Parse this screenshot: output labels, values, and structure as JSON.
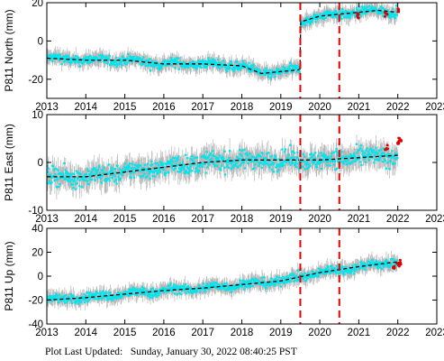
{
  "chart_data": [
    {
      "type": "scatter",
      "ylabel": "P811 North (mm)",
      "xlim": [
        2013,
        2023
      ],
      "ylim": [
        -30,
        20
      ],
      "xticks": [
        2013,
        2014,
        2015,
        2016,
        2017,
        2018,
        2019,
        2020,
        2021,
        2022,
        2023
      ],
      "yticks": [
        -20,
        0,
        20
      ],
      "event_lines": [
        2019.5,
        2020.5
      ],
      "series": [
        {
          "role": "daily",
          "color": "#00e5ee",
          "errorbar_color": "#aaaaaa",
          "x": [
            2013.0,
            2014.0,
            2015.0,
            2016.0,
            2017.0,
            2018.0,
            2018.5,
            2019.49,
            2019.51,
            2020.0,
            2020.5,
            2021.0,
            2021.5,
            2022.0
          ],
          "y": [
            -9,
            -10,
            -10,
            -12,
            -12,
            -13,
            -17,
            -15,
            10,
            13,
            14,
            15,
            16,
            15
          ]
        },
        {
          "role": "model",
          "color": "#000000",
          "style": "dashed",
          "x": [
            2013.0,
            2014.0,
            2015.0,
            2016.0,
            2017.0,
            2018.0,
            2018.5,
            2019.49,
            2019.51,
            2020.0,
            2020.5,
            2021.0,
            2021.5,
            2022.0
          ],
          "y": [
            -9,
            -10,
            -10,
            -12,
            -12,
            -13,
            -17,
            -15,
            10,
            13,
            14,
            15,
            16,
            15
          ]
        },
        {
          "role": "rapid",
          "color": "#dd0000",
          "x": [
            2021.0,
            2021.7,
            2022.0
          ],
          "y": [
            13,
            14,
            16
          ]
        }
      ]
    },
    {
      "type": "scatter",
      "ylabel": "P811 East (mm)",
      "xlim": [
        2013,
        2023
      ],
      "ylim": [
        -10,
        10
      ],
      "xticks": [
        2013,
        2014,
        2015,
        2016,
        2017,
        2018,
        2019,
        2020,
        2021,
        2022,
        2023
      ],
      "yticks": [
        -10,
        0,
        10
      ],
      "event_lines": [
        2019.5,
        2020.5
      ],
      "series": [
        {
          "role": "daily",
          "color": "#00e5ee",
          "errorbar_color": "#aaaaaa",
          "x": [
            2013.0,
            2014.0,
            2015.0,
            2016.0,
            2017.0,
            2018.0,
            2019.0,
            2020.0,
            2021.0,
            2022.0
          ],
          "y": [
            -3,
            -3,
            -2,
            -1,
            0,
            0.5,
            0.5,
            0.5,
            1,
            1.5
          ]
        },
        {
          "role": "model",
          "color": "#000000",
          "style": "dashed",
          "x": [
            2013.0,
            2014.0,
            2015.0,
            2016.0,
            2017.0,
            2018.0,
            2019.0,
            2020.0,
            2021.0,
            2022.0
          ],
          "y": [
            -3,
            -3,
            -2,
            -1,
            0,
            0.5,
            0.5,
            0.5,
            1,
            1.5
          ]
        },
        {
          "role": "rapid",
          "color": "#dd0000",
          "x": [
            2021.7,
            2022.0,
            2022.05
          ],
          "y": [
            3,
            4,
            5
          ]
        }
      ]
    },
    {
      "type": "scatter",
      "ylabel": "P811 Up (mm)",
      "xlim": [
        2013,
        2023
      ],
      "ylim": [
        -40,
        40
      ],
      "xticks": [
        2013,
        2014,
        2015,
        2016,
        2017,
        2018,
        2019,
        2020,
        2021,
        2022,
        2023
      ],
      "yticks": [
        -40,
        -20,
        0,
        20,
        40
      ],
      "event_lines": [
        2019.5,
        2020.5
      ],
      "series": [
        {
          "role": "daily",
          "color": "#00e5ee",
          "errorbar_color": "#aaaaaa",
          "x": [
            2013.0,
            2014.0,
            2015.0,
            2016.0,
            2017.0,
            2018.0,
            2019.0,
            2020.0,
            2021.0,
            2022.0
          ],
          "y": [
            -20,
            -18,
            -15,
            -12,
            -10,
            -7,
            -4,
            3,
            8,
            12
          ]
        },
        {
          "role": "model",
          "color": "#000000",
          "style": "dashed",
          "x": [
            2013.0,
            2014.0,
            2015.0,
            2016.0,
            2017.0,
            2018.0,
            2019.0,
            2020.0,
            2021.0,
            2022.0
          ],
          "y": [
            -20,
            -18,
            -15,
            -12,
            -10,
            -7,
            -4,
            3,
            8,
            12
          ]
        },
        {
          "role": "rapid",
          "color": "#dd0000",
          "x": [
            2021.9,
            2022.0,
            2022.05
          ],
          "y": [
            8,
            10,
            12
          ]
        }
      ]
    }
  ],
  "footer": {
    "label": "Plot Last Updated:",
    "timestamp": "Sunday, January 30, 2022 08:40:25 PST"
  }
}
